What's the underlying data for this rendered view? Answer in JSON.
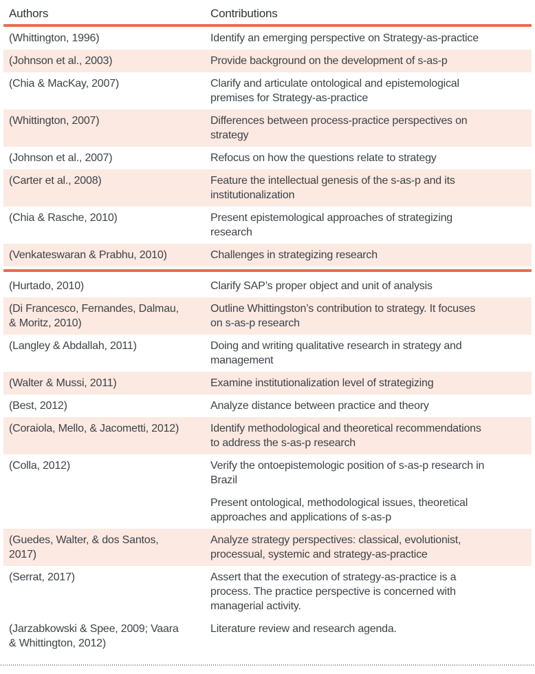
{
  "colors": {
    "accent": "#EB6A50",
    "row_highlight": "#FBE9E2",
    "text": "#3E4247"
  },
  "table": {
    "columns": [
      "Authors",
      "Contributions"
    ],
    "rows": [
      {
        "author": "(Whittington, 1996)",
        "contribution": "Identify an emerging perspective on Strategy-as-practice",
        "bg": "white",
        "divider_after": false
      },
      {
        "author": "(Johnson et al., 2003)",
        "contribution": "Provide background on the development of s-as-p",
        "bg": "pink",
        "divider_after": false
      },
      {
        "author": "(Chia & MacKay, 2007)",
        "contribution": "Clarify and articulate ontological and epistemological\npremises for Strategy-as-practice",
        "bg": "white",
        "divider_after": false
      },
      {
        "author": "(Whittington, 2007)",
        "contribution": "Differences between process-practice perspectives on\nstrategy",
        "bg": "pink",
        "divider_after": false
      },
      {
        "author": "(Johnson et al., 2007)",
        "contribution": "Refocus on how the questions relate to strategy",
        "bg": "white",
        "divider_after": false
      },
      {
        "author": "(Carter et al., 2008)",
        "contribution": "Feature the intellectual genesis of the s-as-p and its\ninstitutionalization",
        "bg": "pink",
        "divider_after": false
      },
      {
        "author": "(Chia & Rasche, 2010)",
        "contribution": "Present epistemological approaches of strategizing\nresearch",
        "bg": "white",
        "divider_after": false
      },
      {
        "author": "(Venkateswaran & Prabhu, 2010)",
        "contribution": "Challenges in strategizing research",
        "bg": "pink",
        "divider_after": true
      },
      {
        "author": "(Hurtado, 2010)",
        "contribution": "Clarify SAP’s proper object and unit of analysis",
        "bg": "white",
        "divider_after": false
      },
      {
        "author": "(Di Francesco, Fernandes, Dalmau,\n& Moritz, 2010)",
        "contribution": "Outline Whittingston’s contribution to strategy. It focuses\non s-as-p research",
        "bg": "pink",
        "divider_after": false
      },
      {
        "author": "(Langley & Abdallah, 2011)",
        "contribution": "Doing and writing qualitative research in strategy and\nmanagement",
        "bg": "white",
        "divider_after": false
      },
      {
        "author": "(Walter & Mussi, 2011)",
        "contribution": "Examine institutionalization level of strategizing",
        "bg": "pink",
        "divider_after": false
      },
      {
        "author": "(Best, 2012)",
        "contribution": "Analyze distance between practice and theory",
        "bg": "white",
        "divider_after": false
      },
      {
        "author": "(Coraiola, Mello, & Jacometti, 2012)",
        "contribution": "Identify methodological and theoretical recommendations\nto address the s-as-p research",
        "bg": "pink",
        "divider_after": false
      },
      {
        "author": "(Colla, 2012)",
        "contribution": "Verify the ontoepistemologic position of s-as-p research in\nBrazil",
        "bg": "white",
        "divider_after": false
      },
      {
        "author": "",
        "contribution": "Present ontological, methodological issues, theoretical\napproaches and applications of s-as-p",
        "bg": "white",
        "divider_after": false
      },
      {
        "author": "(Guedes, Walter, & dos Santos,\n2017)",
        "contribution": "Analyze strategy perspectives: classical, evolutionist,\nprocessual, systemic and strategy-as-practice",
        "bg": "pink",
        "divider_after": false
      },
      {
        "author": "(Serrat, 2017)",
        "contribution": "Assert that the execution of strategy-as-practice is a\nprocess. The practice perspective is concerned with\nmanagerial activity.",
        "bg": "white",
        "divider_after": false
      },
      {
        "author": "(Jarzabkowski & Spee, 2009; Vaara\n& Whittington, 2012)",
        "contribution": "Literature review and research agenda.",
        "bg": "white",
        "divider_after": false
      }
    ]
  }
}
